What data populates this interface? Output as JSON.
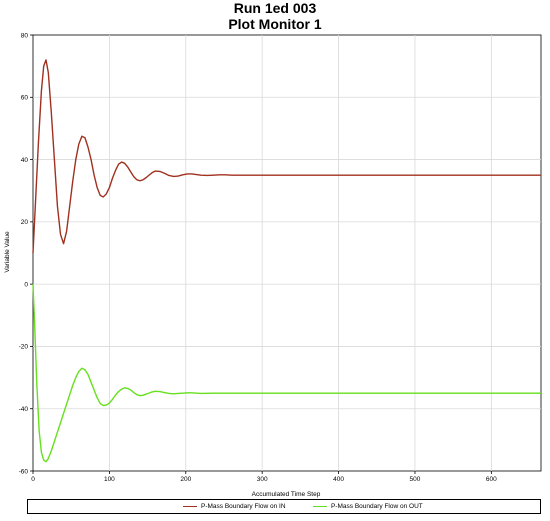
{
  "chart_data": {
    "type": "line",
    "title": "Run 1ed 003",
    "subtitle": "Plot Monitor 1",
    "xlabel": "Accumulated Time Step",
    "ylabel": "Variable Value",
    "xlim": [
      0,
      665
    ],
    "ylim": [
      -60,
      80
    ],
    "xticks": [
      0,
      100,
      200,
      300,
      400,
      500,
      600
    ],
    "yticks": [
      -60,
      -40,
      -20,
      0,
      20,
      40,
      60,
      80
    ],
    "grid": true,
    "legend_position": "bottom",
    "series": [
      {
        "name": "P-Mass Boundary Flow on IN",
        "color": "#a0301f",
        "x": [
          0,
          3,
          7,
          11,
          14,
          17,
          20,
          24,
          28,
          32,
          36,
          40,
          44,
          48,
          52,
          56,
          60,
          64,
          68,
          72,
          76,
          80,
          84,
          88,
          92,
          96,
          100,
          104,
          108,
          112,
          116,
          120,
          124,
          128,
          132,
          136,
          140,
          144,
          148,
          152,
          156,
          160,
          166,
          172,
          178,
          184,
          190,
          196,
          202,
          208,
          214,
          220,
          228,
          236,
          244,
          252,
          260,
          270,
          280,
          290,
          300,
          320,
          350,
          400,
          500,
          600,
          665
        ],
        "y": [
          10,
          25,
          45,
          62,
          70,
          72,
          68,
          55,
          40,
          25,
          16,
          13,
          17,
          25,
          33,
          40,
          45,
          47.5,
          47,
          44,
          40,
          35,
          31,
          28.5,
          28,
          29,
          31,
          34,
          36.5,
          38.5,
          39.2,
          38.8,
          37.6,
          36,
          34.5,
          33.5,
          33.2,
          33.5,
          34.2,
          35,
          35.8,
          36.3,
          36.2,
          35.6,
          34.9,
          34.6,
          34.7,
          35.1,
          35.4,
          35.4,
          35.2,
          35,
          34.9,
          35,
          35.1,
          35.1,
          35,
          35,
          35,
          35,
          35,
          35,
          35,
          35,
          35,
          35,
          35
        ]
      },
      {
        "name": "P-Mass Boundary Flow on OUT",
        "color": "#66e01e",
        "x": [
          0,
          2,
          5,
          8,
          11,
          14,
          17,
          20,
          24,
          28,
          32,
          36,
          40,
          44,
          48,
          52,
          56,
          60,
          64,
          68,
          72,
          76,
          80,
          84,
          88,
          92,
          96,
          100,
          104,
          108,
          112,
          116,
          120,
          124,
          128,
          132,
          136,
          140,
          144,
          148,
          152,
          156,
          160,
          166,
          172,
          178,
          184,
          190,
          196,
          202,
          208,
          214,
          220,
          228,
          236,
          244,
          252,
          260,
          270,
          280,
          290,
          300,
          320,
          350,
          400,
          500,
          600,
          665
        ],
        "y": [
          0,
          -12,
          -32,
          -47,
          -54,
          -56.5,
          -57,
          -56,
          -53.5,
          -50.5,
          -47.5,
          -44.5,
          -41.5,
          -38.5,
          -35.5,
          -32.5,
          -30,
          -28,
          -27,
          -27.5,
          -29,
          -31.5,
          -34,
          -36.5,
          -38.3,
          -39,
          -38.8,
          -38.2,
          -37,
          -35.6,
          -34.5,
          -33.7,
          -33.3,
          -33.5,
          -34,
          -34.8,
          -35.5,
          -35.8,
          -35.7,
          -35.3,
          -35,
          -34.6,
          -34.4,
          -34.5,
          -34.8,
          -35.1,
          -35.2,
          -35.1,
          -35,
          -34.9,
          -34.9,
          -35,
          -35.1,
          -35.05,
          -35,
          -35,
          -35,
          -35,
          -35,
          -35,
          -35,
          -35,
          -35,
          -35,
          -35,
          -35,
          -35,
          -35
        ]
      }
    ]
  }
}
